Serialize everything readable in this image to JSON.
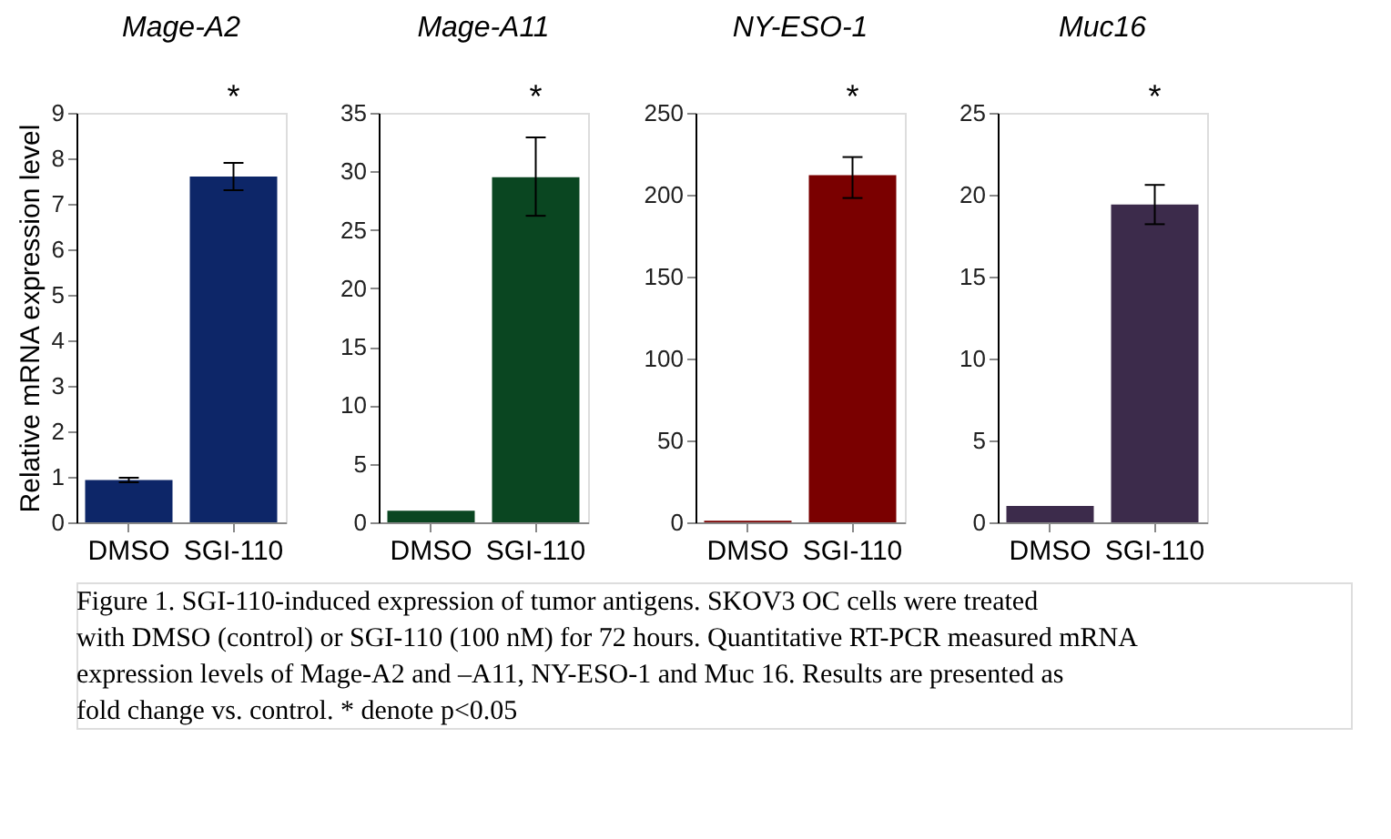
{
  "chart_data": [
    {
      "type": "bar",
      "title": "Mage-A2",
      "ylabel": "Relative mRNA expression level",
      "categories": [
        "DMSO",
        "SGI-110"
      ],
      "values": [
        0.93,
        7.6
      ],
      "errors": [
        0.05,
        [
          7.3,
          7.9
        ]
      ],
      "color": "#0d2668",
      "ylim": [
        0,
        9
      ],
      "yticks": [
        0,
        1,
        2,
        3,
        4,
        5,
        6,
        7,
        8,
        9
      ],
      "grid": false,
      "annotations": [
        "*",
        "Figure 1. SGI-110-induced expression of tumor antigens.  SKOV3  OC cells were treated with DMSO (control) or SGI-110 (100 nM) for 72 hours. Quantitative RT-PCR measured mRNA expression levels of Mage-A2 and –A11, NY-ESO-1 and Muc 16.  Results are presented as fold change vs. control. * denote p<0.05"
      ]
    },
    {
      "type": "bar",
      "title": "Mage-A11",
      "categories": [
        "DMSO",
        "SGI-110"
      ],
      "values": [
        1,
        29.5
      ],
      "errors": [
        null,
        [
          26.2,
          32.9
        ]
      ],
      "color": "#0a4621",
      "ylim": [
        0,
        35
      ],
      "yticks": [
        0,
        5,
        10,
        15,
        20,
        25,
        30,
        35
      ],
      "grid": false,
      "annotations": [
        "*"
      ]
    },
    {
      "type": "bar",
      "title": "NY-ESO-1",
      "categories": [
        "DMSO",
        "SGI-110"
      ],
      "values": [
        1,
        212
      ],
      "errors": [
        null,
        [
          198,
          223
        ]
      ],
      "color": "#7a0000",
      "ylim": [
        0,
        250
      ],
      "yticks": [
        0,
        50,
        100,
        150,
        200,
        250
      ],
      "grid": false,
      "annotations": [
        "*"
      ]
    },
    {
      "type": "bar",
      "title": "Muc16",
      "categories": [
        "DMSO",
        "SGI-110"
      ],
      "values": [
        1,
        19.4
      ],
      "errors": [
        null,
        [
          18.2,
          20.6
        ]
      ],
      "color": "#3c2b4b",
      "ylim": [
        0,
        25
      ],
      "yticks": [
        0,
        5,
        10,
        15,
        20,
        25
      ],
      "grid": false,
      "annotations": [
        "*"
      ]
    }
  ]
}
